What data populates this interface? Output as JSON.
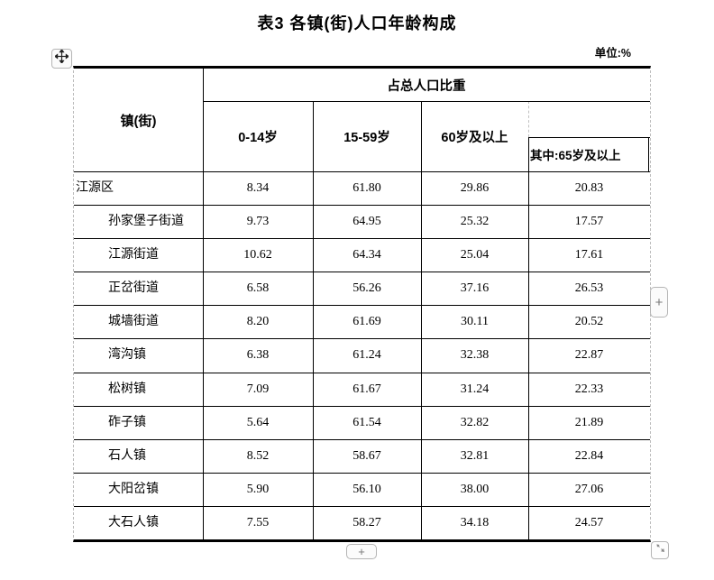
{
  "title": "表3 各镇(街)人口年龄构成",
  "unit_label": "单位:%",
  "table": {
    "corner_header": "镇(街)",
    "span_header": "占总人口比重",
    "col_headers": [
      "0-14岁",
      "15-59岁",
      "60岁及以上"
    ],
    "sub_header": "其中:65岁及以上",
    "rows": [
      {
        "name": "江源区",
        "indent": false,
        "values": [
          "8.34",
          "61.80",
          "29.86",
          "20.83"
        ]
      },
      {
        "name": "孙家堡子街道",
        "indent": true,
        "values": [
          "9.73",
          "64.95",
          "25.32",
          "17.57"
        ]
      },
      {
        "name": "江源街道",
        "indent": true,
        "values": [
          "10.62",
          "64.34",
          "25.04",
          "17.61"
        ]
      },
      {
        "name": "正岔街道",
        "indent": true,
        "values": [
          "6.58",
          "56.26",
          "37.16",
          "26.53"
        ]
      },
      {
        "name": "城墙街道",
        "indent": true,
        "values": [
          "8.20",
          "61.69",
          "30.11",
          "20.52"
        ]
      },
      {
        "name": "湾沟镇",
        "indent": true,
        "values": [
          "6.38",
          "61.24",
          "32.38",
          "22.87"
        ]
      },
      {
        "name": "松树镇",
        "indent": true,
        "values": [
          "7.09",
          "61.67",
          "31.24",
          "22.33"
        ]
      },
      {
        "name": "砟子镇",
        "indent": true,
        "values": [
          "5.64",
          "61.54",
          "32.82",
          "21.89"
        ]
      },
      {
        "name": "石人镇",
        "indent": true,
        "values": [
          "8.52",
          "58.67",
          "32.81",
          "22.84"
        ]
      },
      {
        "name": "大阳岔镇",
        "indent": true,
        "values": [
          "5.90",
          "56.10",
          "38.00",
          "27.06"
        ]
      },
      {
        "name": "大石人镇",
        "indent": true,
        "values": [
          "7.55",
          "58.27",
          "34.18",
          "24.57"
        ]
      }
    ]
  },
  "controls": {
    "insert_column_label": "+",
    "insert_row_label": "+"
  },
  "colors": {
    "border": "#000000",
    "gridline_dashed": "#bcbcbc",
    "control_border": "#b5b5b5",
    "control_glyph": "#777777"
  }
}
